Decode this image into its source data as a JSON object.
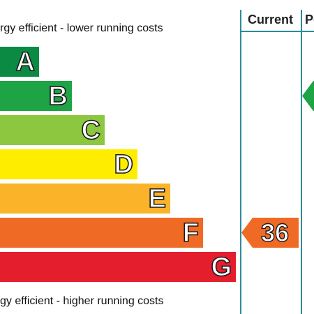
{
  "chart_data": {
    "type": "bar",
    "labels": {
      "top": "rgy efficient - lower running costs",
      "bottom": "gy efficient - higher running costs"
    },
    "columns": [
      "Current",
      "Po"
    ],
    "categories": [
      "A",
      "B",
      "C",
      "D",
      "E",
      "F",
      "G"
    ],
    "band_colors": [
      "#0b8a43",
      "#1ea345",
      "#8dc63f",
      "#ffed00",
      "#fbb32a",
      "#ef6a25",
      "#e41e2d"
    ],
    "current": {
      "value": "36",
      "band": "F",
      "color": "#ef6a25"
    },
    "potential": {
      "value": "",
      "band": "B",
      "color": "#1ea345"
    }
  }
}
